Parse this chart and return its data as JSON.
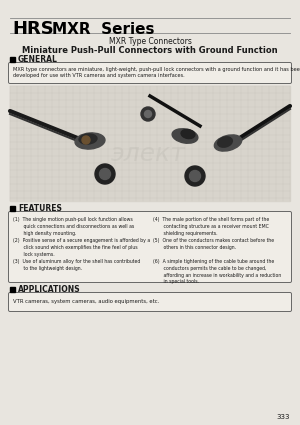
{
  "bg_color": "#e8e5df",
  "title_hrs": "HRS",
  "title_series": "MXR  Series",
  "subtitle1": "MXR Type Connectors",
  "subtitle2": "Miniature Push-Pull Connectors with Ground Function",
  "section_general": "GENERAL",
  "general_text1": "MXR type connectors are miniature, light-weight, push-pull lock connectors with a ground function and it has been",
  "general_text2": "developed for use with VTR cameras and system camera interfaces.",
  "section_features": "FEATURES",
  "features_left": [
    "(1)  The single motion push-pull lock function allows\n       quick connections and disconnections as well as\n       high density mounting.",
    "(2)  Positive sense of a secure engagement is afforded by a\n       click sound which exemplifies the fine feel of plus\n       lock systems.",
    "(3)  Use of aluminum alloy for the shell has contributed\n       to the lightweight design."
  ],
  "features_right": [
    "(4)  The male portion of the shell forms part of the\n       contacting structure as a receiver mount EMC\n       shielding requirements.",
    "(5)  One of the conductors makes contact before the\n       others in this connector design.",
    "(6)  A simple tightening of the cable tube around the\n       conductors permits the cable to be changed,\n       affording an increase in workability and a reduction\n       in special tools."
  ],
  "section_applications": "APPLICATIONS",
  "applications_text": "VTR cameras, system cameras, audio equipments, etc.",
  "page_number": "333",
  "text_color": "#1a1a1a",
  "box_border": "#666666",
  "box_bg": "#f0ede7",
  "header_line_color": "#444444",
  "grid_color": "#c8c4bc",
  "img_bg": "#d8d4cc"
}
